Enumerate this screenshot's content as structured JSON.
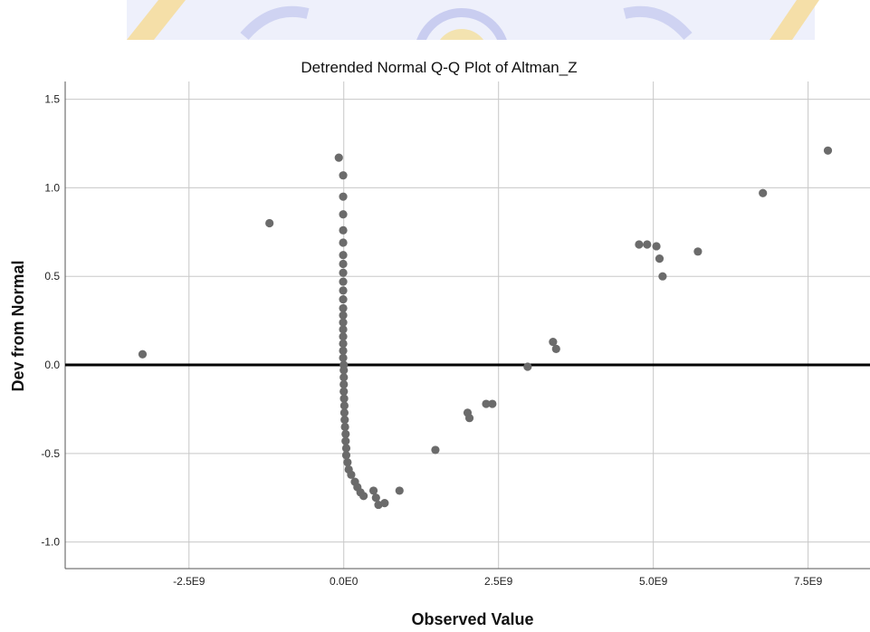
{
  "chart_data": {
    "type": "scatter",
    "title": "Detrended Normal Q-Q Plot of Altman_Z",
    "xlabel": "Observed Value",
    "ylabel": "Dev from Normal",
    "xlim": [
      -4500000000.0,
      8500000000.0
    ],
    "ylim": [
      -1.15,
      1.6
    ],
    "x_ticks": [
      -2500000000.0,
      0,
      2500000000.0,
      5000000000.0,
      7500000000.0
    ],
    "x_tick_labels": [
      "-2.5E9",
      "0.0E0",
      "2.5E9",
      "5.0E9",
      "7.5E9"
    ],
    "y_ticks": [
      -1.0,
      -0.5,
      0.0,
      0.5,
      1.0,
      1.5
    ],
    "y_tick_labels": [
      "-1.0",
      "-0.5",
      "0.0",
      "0.5",
      "1.0",
      "1.5"
    ],
    "grid": true,
    "reference_line_y": 0,
    "colors": {
      "point": "#6b6b6b",
      "reference_line": "#000000",
      "grid": "#c8c8c8"
    },
    "points": [
      {
        "x": -3250000000.0,
        "y": 0.06
      },
      {
        "x": -1200000000.0,
        "y": 0.8
      },
      {
        "x": -80000000.0,
        "y": 1.17
      },
      {
        "x": -10000000.0,
        "y": 1.07
      },
      {
        "x": -10000000.0,
        "y": 0.95
      },
      {
        "x": -10000000.0,
        "y": 0.85
      },
      {
        "x": -10000000.0,
        "y": 0.76
      },
      {
        "x": -10000000.0,
        "y": 0.69
      },
      {
        "x": -10000000.0,
        "y": 0.62
      },
      {
        "x": -10000000.0,
        "y": 0.57
      },
      {
        "x": -10000000.0,
        "y": 0.52
      },
      {
        "x": -10000000.0,
        "y": 0.47
      },
      {
        "x": -10000000.0,
        "y": 0.42
      },
      {
        "x": -10000000.0,
        "y": 0.37
      },
      {
        "x": -10000000.0,
        "y": 0.32
      },
      {
        "x": -10000000.0,
        "y": 0.28
      },
      {
        "x": -10000000.0,
        "y": 0.24
      },
      {
        "x": -10000000.0,
        "y": 0.2
      },
      {
        "x": -10000000.0,
        "y": 0.16
      },
      {
        "x": -10000000.0,
        "y": 0.12
      },
      {
        "x": -10000000.0,
        "y": 0.08
      },
      {
        "x": -10000000.0,
        "y": 0.04
      },
      {
        "x": 0.0,
        "y": 0.0
      },
      {
        "x": 0.0,
        "y": -0.03
      },
      {
        "x": 0.0,
        "y": -0.07
      },
      {
        "x": 0.0,
        "y": -0.11
      },
      {
        "x": 0.0,
        "y": -0.15
      },
      {
        "x": 5000000.0,
        "y": -0.19
      },
      {
        "x": 10000000.0,
        "y": -0.23
      },
      {
        "x": 10000000.0,
        "y": -0.27
      },
      {
        "x": 15000000.0,
        "y": -0.31
      },
      {
        "x": 20000000.0,
        "y": -0.35
      },
      {
        "x": 30000000.0,
        "y": -0.39
      },
      {
        "x": 30000000.0,
        "y": -0.43
      },
      {
        "x": 40000000.0,
        "y": -0.47
      },
      {
        "x": 40000000.0,
        "y": -0.51
      },
      {
        "x": 60000000.0,
        "y": -0.55
      },
      {
        "x": 80000000.0,
        "y": -0.59
      },
      {
        "x": 120000000.0,
        "y": -0.62
      },
      {
        "x": 180000000.0,
        "y": -0.66
      },
      {
        "x": 220000000.0,
        "y": -0.69
      },
      {
        "x": 270000000.0,
        "y": -0.72
      },
      {
        "x": 320000000.0,
        "y": -0.74
      },
      {
        "x": 480000000.0,
        "y": -0.71
      },
      {
        "x": 520000000.0,
        "y": -0.75
      },
      {
        "x": 560000000.0,
        "y": -0.79
      },
      {
        "x": 660000000.0,
        "y": -0.78
      },
      {
        "x": 900000000.0,
        "y": -0.71
      },
      {
        "x": 1480000000.0,
        "y": -0.48
      },
      {
        "x": 2000000000.0,
        "y": -0.27
      },
      {
        "x": 2030000000.0,
        "y": -0.3
      },
      {
        "x": 2300000000.0,
        "y": -0.22
      },
      {
        "x": 2400000000.0,
        "y": -0.22
      },
      {
        "x": 2970000000.0,
        "y": -0.01
      },
      {
        "x": 3380000000.0,
        "y": 0.13
      },
      {
        "x": 3430000000.0,
        "y": 0.09
      },
      {
        "x": 4770000000.0,
        "y": 0.68
      },
      {
        "x": 4900000000.0,
        "y": 0.68
      },
      {
        "x": 5050000000.0,
        "y": 0.67
      },
      {
        "x": 5100000000.0,
        "y": 0.6
      },
      {
        "x": 5150000000.0,
        "y": 0.5
      },
      {
        "x": 5720000000.0,
        "y": 0.64
      },
      {
        "x": 6770000000.0,
        "y": 0.97
      },
      {
        "x": 7820000000.0,
        "y": 1.21
      }
    ]
  }
}
